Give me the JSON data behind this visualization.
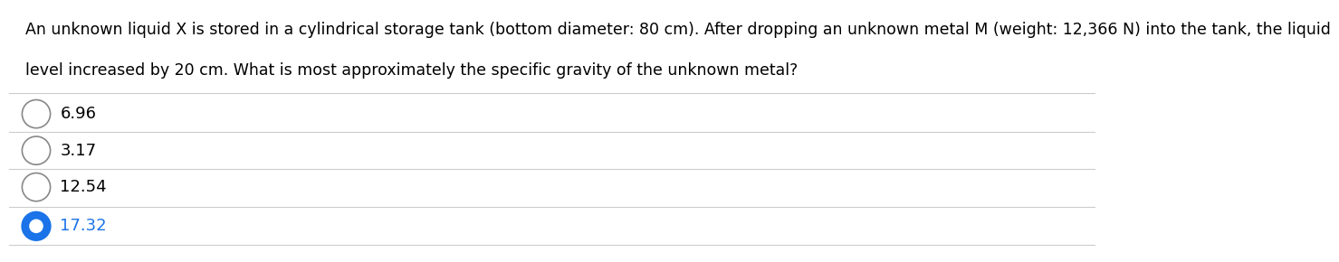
{
  "question_line1": "An unknown liquid X is stored in a cylindrical storage tank (bottom diameter: 80 cm). After dropping an unknown metal M (weight: 12,366 N) into the tank, the liquid",
  "question_line2": "level increased by 20 cm. What is most approximately the specific gravity of the unknown metal?",
  "options": [
    "6.96",
    "3.17",
    "12.54",
    "17.32"
  ],
  "selected_index": 3,
  "background_color": "#ffffff",
  "text_color": "#000000",
  "selected_circle_color": "#1a73e8",
  "unselected_circle_color": "#888888",
  "line_color": "#cccccc",
  "font_size": 12.5,
  "option_font_size": 13
}
